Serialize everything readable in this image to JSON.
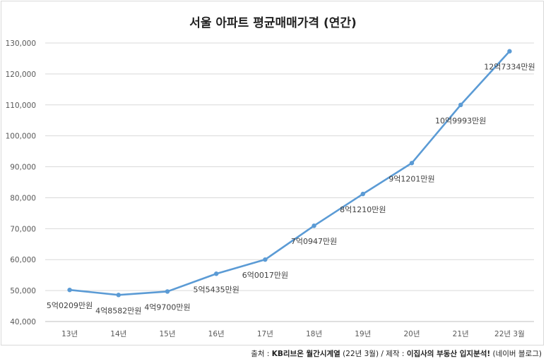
{
  "chart_data": {
    "type": "line",
    "title": "서울 아파트 평균매매가격 (연간)",
    "categories": [
      "13년",
      "14년",
      "15년",
      "16년",
      "17년",
      "18년",
      "19년",
      "20년",
      "21년",
      "22년 3월"
    ],
    "series": [
      {
        "values": [
          50209,
          48582,
          49700,
          55435,
          60017,
          70947,
          81210,
          91201,
          109993,
          127334
        ],
        "labels": [
          "5억0209만원",
          "4억8582만원",
          "4억9700만원",
          "5억5435만원",
          "6억0017만원",
          "7억0947만원",
          "8억1210만원",
          "9억1201만원",
          "10억9993만원",
          "12억7334만원"
        ]
      }
    ],
    "ylim": [
      40000,
      130000
    ],
    "yticks": [
      40000,
      50000,
      60000,
      70000,
      80000,
      90000,
      100000,
      110000,
      120000,
      130000
    ],
    "ytick_labels": [
      "40,000",
      "50,000",
      "60,000",
      "70,000",
      "80,000",
      "90,000",
      "100,000",
      "110,000",
      "120,000",
      "130,000"
    ],
    "grid": "horizontal",
    "line_color": "#5b9bd5"
  },
  "source": {
    "prefix": "출처 : ",
    "source_name": "KB리브온 월간시계열",
    "source_detail": " (22년 3월) / 제작 : ",
    "maker": "이집사의 부동산 입지분석!",
    "maker_detail": " (네이버 블로그)"
  }
}
